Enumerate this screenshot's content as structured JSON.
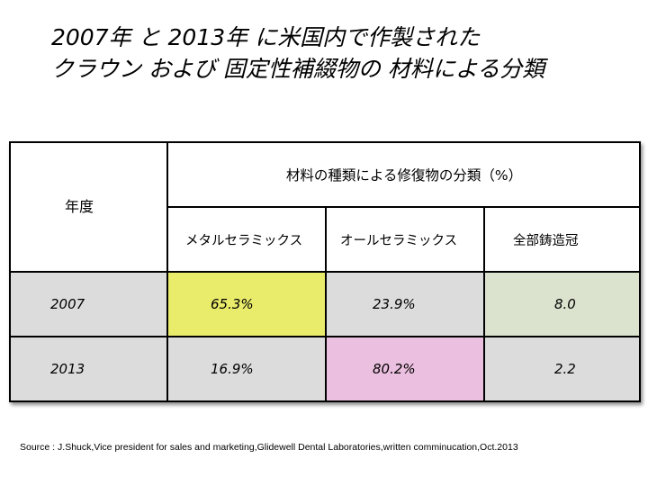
{
  "title": {
    "line1": "2007年 と 2013年 に米国内で作製された",
    "line2": "クラウン および 固定性補綴物の 材料による分類"
  },
  "table": {
    "header_year": "年度",
    "header_group": "材料の種類による修復物の分類（%）",
    "columns": [
      "メタルセラミックス",
      "オールセラミックス",
      "全部鋳造冠"
    ],
    "rows": [
      {
        "year": "2007",
        "values": [
          "65.3%",
          "23.9%",
          "8.0"
        ]
      },
      {
        "year": "2013",
        "values": [
          "16.9%",
          "80.2%",
          "2.2"
        ]
      }
    ],
    "colors": {
      "row_bg": "#dcdcdc",
      "highlight_yellow": "#e9eb6b",
      "highlight_pink": "#ebbfdf",
      "highlight_green": "#dbe2cd"
    }
  },
  "source": "Source : J.Shuck,Vice president for sales and marketing,Glidewell Dental Laboratories,written comminucation,Oct.2013"
}
